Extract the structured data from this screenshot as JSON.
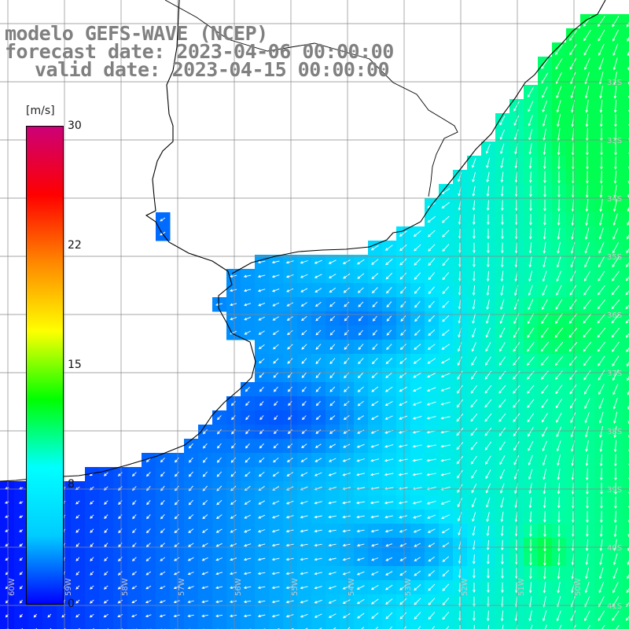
{
  "title": {
    "line1": "modelo GEFS-WAVE (NCEP)",
    "line2": "forecast date: 2023-04-06 00:00:00",
    "line3": "valid date: 2023-04-15 00:00:00"
  },
  "colorbar": {
    "unit": "[m/s]",
    "ticks": [
      "30",
      "22",
      "15",
      "8",
      "0"
    ],
    "colors": [
      "#0000ff",
      "#00ccff",
      "#00ffff",
      "#00ff00",
      "#ffff00",
      "#ff8800",
      "#ff0000",
      "#cc0077"
    ]
  },
  "map": {
    "land_color": "#ffffff",
    "grid_color": "#888888",
    "arrow_color": "#ffffff",
    "lat_labels": [
      "32S",
      "33S",
      "34S",
      "35S",
      "36S",
      "37S",
      "38S",
      "39S",
      "40S",
      "41S"
    ],
    "lon_labels": [
      "60W",
      "59W",
      "58W",
      "57W",
      "56W",
      "55W",
      "54W",
      "53W",
      "52W",
      "51W",
      "50W"
    ]
  }
}
